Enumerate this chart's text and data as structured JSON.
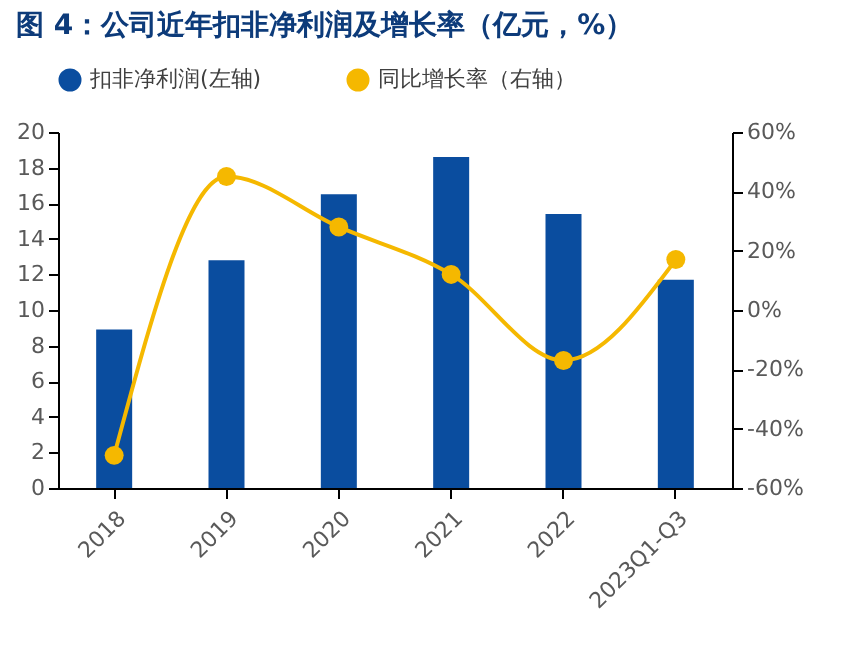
{
  "chart_data": {
    "type": "bar",
    "title": "图 4：公司近年扣非净利润及增长率（亿元，%）",
    "categories": [
      "2018",
      "2019",
      "2020",
      "2021",
      "2022",
      "2023Q1-Q3"
    ],
    "series": [
      {
        "name": "扣非净利润(左轴)",
        "color": "#0a4d9f",
        "values": [
          8.9,
          12.8,
          16.5,
          18.6,
          15.4,
          11.7
        ]
      },
      {
        "name": "同比增长率（右轴）",
        "type": "line",
        "axis": "y2",
        "color": "#f5b800",
        "values": [
          -49,
          45,
          28,
          12,
          -17,
          17
        ]
      }
    ],
    "ylim": [
      0,
      20
    ],
    "yticks": [
      0,
      2,
      4,
      6,
      8,
      10,
      12,
      14,
      16,
      18,
      20
    ],
    "y2lim": [
      -60,
      60
    ],
    "y2ticks": [
      {
        "value": -60,
        "label": "-60%"
      },
      {
        "value": -40,
        "label": "-40%"
      },
      {
        "value": -20,
        "label": "-20%"
      },
      {
        "value": 0,
        "label": "0%"
      },
      {
        "value": 20,
        "label": "20%"
      },
      {
        "value": 40,
        "label": "40%"
      },
      {
        "value": 60,
        "label": "60%"
      }
    ],
    "marker": "circle",
    "line_style": "solid",
    "grid": false,
    "legend": "top"
  }
}
